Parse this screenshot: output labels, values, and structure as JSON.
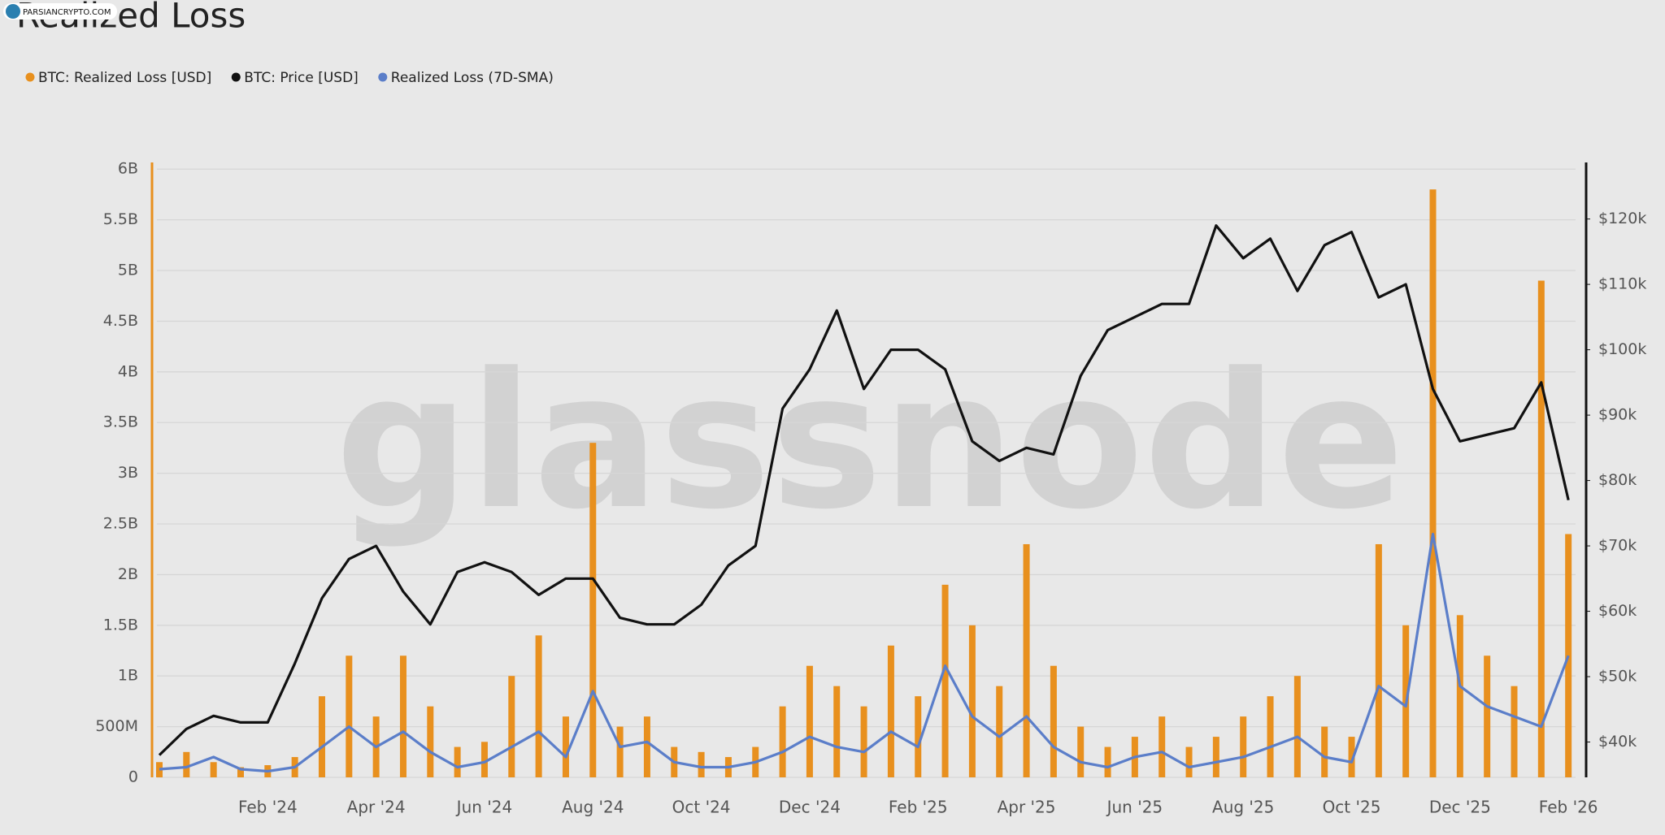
{
  "chart_data": {
    "type": "bar",
    "title": "Realized Loss",
    "watermark": "glassnode",
    "source_badge": "PARSIANCRYPTO.COM",
    "categories": [
      null,
      null,
      null,
      null,
      "Feb '24",
      null,
      null,
      null,
      "Apr '24",
      null,
      null,
      null,
      "Jun '24",
      null,
      null,
      null,
      "Aug '24",
      null,
      null,
      null,
      "Oct '24",
      null,
      null,
      null,
      "Dec '24",
      null,
      null,
      null,
      "Feb '25",
      null,
      null,
      null,
      "Apr '25",
      null,
      null,
      null,
      "Jun '25",
      null,
      null,
      null,
      "Aug '25",
      null,
      null,
      null,
      "Oct '25",
      null,
      null,
      null,
      "Dec '25",
      null,
      null,
      null,
      "Feb '26"
    ],
    "series": [
      {
        "name": "BTC: Realized Loss [USD]",
        "type": "bar",
        "color": "#e8901e",
        "values": [
          150000000,
          250000000,
          150000000,
          100000000,
          120000000,
          200000000,
          800000000,
          1200000000,
          600000000,
          1200000000,
          700000000,
          300000000,
          350000000,
          1000000000,
          1400000000,
          600000000,
          3300000000,
          500000000,
          600000000,
          300000000,
          250000000,
          200000000,
          300000000,
          700000000,
          1100000000,
          900000000,
          700000000,
          1300000000,
          800000000,
          1900000000,
          1500000000,
          900000000,
          2300000000,
          1100000000,
          500000000,
          300000000,
          400000000,
          600000000,
          300000000,
          400000000,
          600000000,
          800000000,
          1000000000,
          500000000,
          400000000,
          2300000000,
          1500000000,
          5800000000,
          1600000000,
          1200000000,
          900000000,
          4900000000,
          2400000000
        ]
      },
      {
        "name": "BTC: Price [USD]",
        "type": "line",
        "axis": "y2",
        "color": "#111111",
        "values": [
          38000,
          42000,
          44000,
          43000,
          43000,
          52000,
          62000,
          68000,
          70000,
          63000,
          58000,
          66000,
          67500,
          66000,
          62500,
          65000,
          65000,
          59000,
          58000,
          58000,
          61000,
          67000,
          70000,
          91000,
          97000,
          106000,
          94000,
          100000,
          100000,
          97000,
          86000,
          83000,
          85000,
          84000,
          96000,
          103000,
          105000,
          107000,
          107000,
          119000,
          114000,
          117000,
          109000,
          116000,
          118000,
          108000,
          110000,
          94000,
          86000,
          87000,
          88000,
          95000,
          77000
        ]
      },
      {
        "name": "Realized Loss (7D-SMA)",
        "type": "line",
        "color": "#5b7ec9",
        "values": [
          80000000,
          100000000,
          200000000,
          80000000,
          60000000,
          100000000,
          300000000,
          500000000,
          300000000,
          450000000,
          250000000,
          100000000,
          150000000,
          300000000,
          450000000,
          200000000,
          850000000,
          300000000,
          350000000,
          150000000,
          100000000,
          100000000,
          150000000,
          250000000,
          400000000,
          300000000,
          250000000,
          450000000,
          300000000,
          1100000000,
          600000000,
          400000000,
          600000000,
          300000000,
          150000000,
          100000000,
          200000000,
          250000000,
          100000000,
          150000000,
          200000000,
          300000000,
          400000000,
          200000000,
          150000000,
          900000000,
          700000000,
          2400000000,
          900000000,
          700000000,
          600000000,
          500000000,
          1200000000
        ]
      }
    ],
    "ylim": [
      0,
      6050000000
    ],
    "yticks": [
      0,
      {
        "value": 500000000,
        "label": "500M"
      },
      {
        "value": 1000000000,
        "label": "1B"
      },
      {
        "value": 1500000000,
        "label": "1.5B"
      },
      {
        "value": 2000000000,
        "label": "2B"
      },
      {
        "value": 2500000000,
        "label": "2.5B"
      },
      {
        "value": 3000000000,
        "label": "3B"
      },
      {
        "value": 3500000000,
        "label": "3.5B"
      },
      {
        "value": 4000000000,
        "label": "4B"
      },
      {
        "value": 4500000000,
        "label": "4.5B"
      },
      {
        "value": 5000000000,
        "label": "5B"
      },
      {
        "value": 5500000000,
        "label": "5.5B"
      },
      {
        "value": 6000000000,
        "label": "6B"
      }
    ],
    "y2lim": [
      34600,
      128400
    ],
    "y2ticks": [
      {
        "value": 40000,
        "label": "$40k"
      },
      {
        "value": 50000,
        "label": "$50k"
      },
      {
        "value": 60000,
        "label": "$60k"
      },
      {
        "value": 70000,
        "label": "$70k"
      },
      {
        "value": 80000,
        "label": "$80k"
      },
      {
        "value": 90000,
        "label": "$90k"
      },
      {
        "value": 100000,
        "label": "$100k"
      },
      {
        "value": 110000,
        "label": "$110k"
      },
      {
        "value": 120000,
        "label": "$120k"
      }
    ],
    "grid": true,
    "legend": "top-left"
  }
}
